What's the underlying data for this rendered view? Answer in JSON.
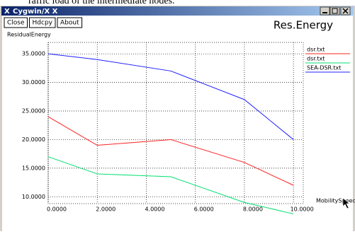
{
  "page_text": "raffic load of the intermediate nodes.",
  "window": {
    "title": "Cygwin/X X",
    "buttons": [
      "Close",
      "Hdcpy",
      "About"
    ]
  },
  "chart_data": {
    "type": "line",
    "title": "Res.Energy",
    "y_label": "ResidualEnergy",
    "x_label": "MobilitySpeed",
    "x": [
      0,
      2,
      5,
      8,
      10
    ],
    "series": [
      {
        "name": "dsr.txt",
        "color": "#ff2020",
        "values": [
          24,
          19,
          20,
          16,
          12
        ]
      },
      {
        "name": "dsr.txt",
        "color": "#00e070",
        "values": [
          17,
          14,
          13.5,
          9,
          7
        ]
      },
      {
        "name": "SEA-DSR.txt",
        "color": "#2020ff",
        "values": [
          35,
          34,
          32,
          27,
          20
        ]
      }
    ],
    "xlim": [
      0,
      10.4
    ],
    "ylim": [
      8.8,
      37
    ],
    "xticks": [
      {
        "value": 0,
        "label": "0.0000"
      },
      {
        "value": 2,
        "label": "2.0000"
      },
      {
        "value": 4,
        "label": "4.0000"
      },
      {
        "value": 6,
        "label": "6.0000"
      },
      {
        "value": 8,
        "label": "8.0000"
      },
      {
        "value": 10,
        "label": "10.0000"
      }
    ],
    "yticks": [
      {
        "value": 10,
        "label": "10.0000"
      },
      {
        "value": 15,
        "label": "15.0000"
      },
      {
        "value": 20,
        "label": "20.0000"
      },
      {
        "value": 25,
        "label": "25.0000"
      },
      {
        "value": 30,
        "label": "30.0000"
      },
      {
        "value": 35,
        "label": "35.0000"
      }
    ],
    "grid": true
  }
}
